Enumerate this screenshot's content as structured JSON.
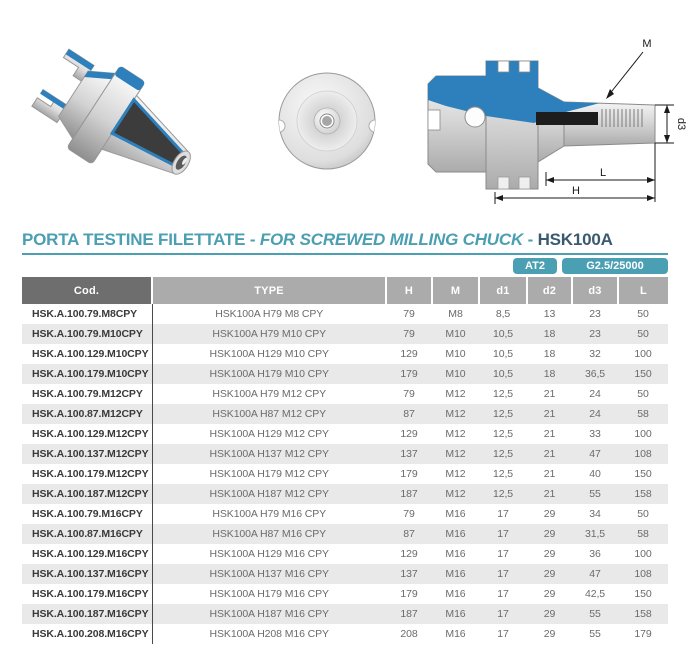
{
  "header": {
    "title_primary": "PORTA TESTINE FILETTATE - ",
    "title_secondary": "FOR SCREWED MILLING CHUCK",
    "title_separator": " - ",
    "title_model": "HSK100A",
    "badge_tolerance": "AT2",
    "badge_balancing": "G2.5/25000"
  },
  "drawing": {
    "label_m": "M",
    "label_d3": "d3",
    "label_l": "L",
    "label_h": "H"
  },
  "table": {
    "headers": [
      "Cod.",
      "TYPE",
      "H",
      "M",
      "d1",
      "d2",
      "d3",
      "L"
    ],
    "rows": [
      [
        "HSK.A.100.79.M8CPY",
        "HSK100A H79 M8 CPY",
        "79",
        "M8",
        "8,5",
        "13",
        "23",
        "50"
      ],
      [
        "HSK.A.100.79.M10CPY",
        "HSK100A H79 M10 CPY",
        "79",
        "M10",
        "10,5",
        "18",
        "23",
        "50"
      ],
      [
        "HSK.A.100.129.M10CPY",
        "HSK100A H129 M10 CPY",
        "129",
        "M10",
        "10,5",
        "18",
        "32",
        "100"
      ],
      [
        "HSK.A.100.179.M10CPY",
        "HSK100A H179 M10 CPY",
        "179",
        "M10",
        "10,5",
        "18",
        "36,5",
        "150"
      ],
      [
        "HSK.A.100.79.M12CPY",
        "HSK100A H79 M12 CPY",
        "79",
        "M12",
        "12,5",
        "21",
        "24",
        "50"
      ],
      [
        "HSK.A.100.87.M12CPY",
        "HSK100A H87 M12 CPY",
        "87",
        "M12",
        "12,5",
        "21",
        "24",
        "58"
      ],
      [
        "HSK.A.100.129.M12CPY",
        "HSK100A H129 M12 CPY",
        "129",
        "M12",
        "12,5",
        "21",
        "33",
        "100"
      ],
      [
        "HSK.A.100.137.M12CPY",
        "HSK100A H137 M12 CPY",
        "137",
        "M12",
        "12,5",
        "21",
        "47",
        "108"
      ],
      [
        "HSK.A.100.179.M12CPY",
        "HSK100A H179 M12 CPY",
        "179",
        "M12",
        "12,5",
        "21",
        "40",
        "150"
      ],
      [
        "HSK.A.100.187.M12CPY",
        "HSK100A H187 M12 CPY",
        "187",
        "M12",
        "12,5",
        "21",
        "55",
        "158"
      ],
      [
        "HSK.A.100.79.M16CPY",
        "HSK100A H79 M16 CPY",
        "79",
        "M16",
        "17",
        "29",
        "34",
        "50"
      ],
      [
        "HSK.A.100.87.M16CPY",
        "HSK100A H87 M16 CPY",
        "87",
        "M16",
        "17",
        "29",
        "31,5",
        "58"
      ],
      [
        "HSK.A.100.129.M16CPY",
        "HSK100A H129 M16 CPY",
        "129",
        "M16",
        "17",
        "29",
        "36",
        "100"
      ],
      [
        "HSK.A.100.137.M16CPY",
        "HSK100A H137 M16 CPY",
        "137",
        "M16",
        "17",
        "29",
        "47",
        "108"
      ],
      [
        "HSK.A.100.179.M16CPY",
        "HSK100A H179 M16 CPY",
        "179",
        "M16",
        "17",
        "29",
        "42,5",
        "150"
      ],
      [
        "HSK.A.100.187.M16CPY",
        "HSK100A H187 M16 CPY",
        "187",
        "M16",
        "17",
        "29",
        "55",
        "158"
      ],
      [
        "HSK.A.100.208.M16CPY",
        "HSK100A H208 M16 CPY",
        "208",
        "M16",
        "17",
        "29",
        "55",
        "179"
      ]
    ]
  },
  "colors": {
    "accent_teal": "#4A9FB2",
    "model_navy": "#3A5A70",
    "drawing_blue": "#2E80BC",
    "header_dark": "#6E6E6E",
    "header_light": "#ABABAB",
    "row_alt": "#E9E9E9"
  }
}
